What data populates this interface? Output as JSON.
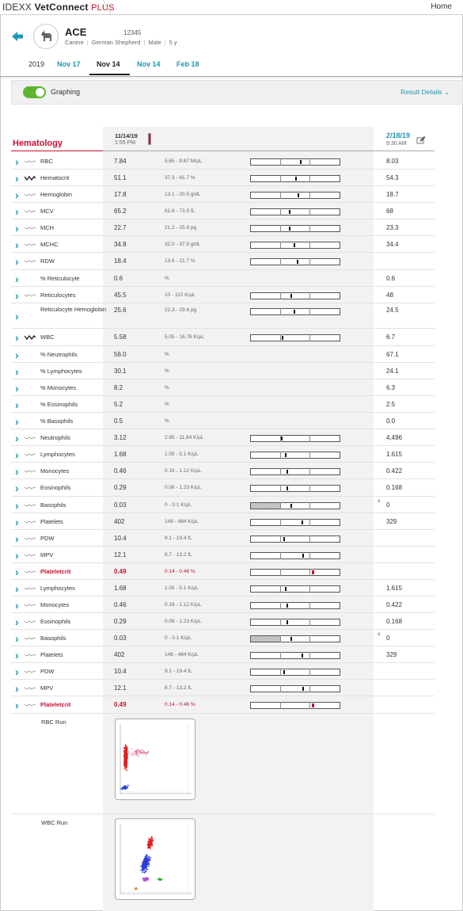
{
  "app": {
    "logo_idexx": "IDEXX",
    "logo_vc": "VetConnect",
    "logo_plus": "PLUS",
    "home_label": "Home"
  },
  "patient": {
    "name": "ACE",
    "id": "12345",
    "species": "Canine",
    "breed": "German Shepherd",
    "sex": "Male",
    "age": "5 y"
  },
  "tabs": [
    {
      "label": "2019",
      "kind": "year"
    },
    {
      "label": "Nov 17",
      "kind": "date"
    },
    {
      "label": "Nov 14",
      "kind": "active"
    },
    {
      "label": "Nov 14",
      "kind": "date"
    },
    {
      "label": "Feb 18",
      "kind": "date"
    }
  ],
  "graphing": {
    "label": "Graphing",
    "enabled": true,
    "result_details_label": "Result Details"
  },
  "section": {
    "title": "Hematology"
  },
  "columns": {
    "current": {
      "date": "11/14/19",
      "time": "1:55 PM"
    },
    "compare": {
      "date": "2/18/19",
      "time": "9:30 AM"
    }
  },
  "colors": {
    "accent": "#1a9ab5",
    "abnormal": "#c8102e",
    "toggle_on": "#5cb531"
  },
  "rows": [
    {
      "name": "RBC",
      "spark": "flat",
      "value": "7.84",
      "range": "5.65 - 8.87 M/µL",
      "bar": 0.55,
      "compare": "8.03"
    },
    {
      "name": "Hematocrit",
      "spark": "wave",
      "value": "51.1",
      "range": "37.3 - 61.7 %",
      "bar": 0.5,
      "compare": "54.3"
    },
    {
      "name": "Hemoglobin",
      "spark": "flat",
      "value": "17.8",
      "range": "13.1 - 20.5 g/dL",
      "bar": 0.53,
      "compare": "18.7"
    },
    {
      "name": "MCV",
      "spark": "flat",
      "value": "65.2",
      "range": "61.6 - 73.5 fL",
      "bar": 0.43,
      "compare": "68"
    },
    {
      "name": "MCH",
      "spark": "flat",
      "value": "22.7",
      "range": "21.2 - 25.9 pg",
      "bar": 0.43,
      "compare": "23.3"
    },
    {
      "name": "MCHC",
      "spark": "flat",
      "value": "34.8",
      "range": "32.0 - 37.9 g/dL",
      "bar": 0.48,
      "compare": "34.4"
    },
    {
      "name": "RDW",
      "spark": "flat",
      "value": "18.4",
      "range": "13.6 - 21.7 %",
      "bar": 0.52,
      "compare": ""
    },
    {
      "name": "% Reticulocyte",
      "spark": "none",
      "value": "0.6",
      "range": "%",
      "compare": "0.6"
    },
    {
      "name": "Reticulocytes",
      "spark": "flat",
      "value": "45.5",
      "range": "10 - 110 K/µL",
      "bar": 0.45,
      "compare": "48"
    },
    {
      "name": "Reticulocyte Hemoglobin",
      "spark": "none",
      "value": "25.6",
      "range": "22.3 - 29.6 pg",
      "bar": 0.48,
      "compare": "24.5"
    },
    {
      "name": "WBC",
      "spark": "wave",
      "value": "5.58",
      "range": "5.05 - 16.76 K/µL",
      "bar": 0.35,
      "compare": "6.7"
    },
    {
      "name": "% Neutrophils",
      "spark": "none",
      "value": "56.0",
      "range": "%",
      "compare": "67.1"
    },
    {
      "name": "% Lymphocytes",
      "spark": "none",
      "value": "30.1",
      "range": "%",
      "compare": "24.1"
    },
    {
      "name": "% Monocytes",
      "spark": "none",
      "value": "8.2",
      "range": "%",
      "compare": "6.3"
    },
    {
      "name": "% Eosinophils",
      "spark": "none",
      "value": "5.2",
      "range": "%",
      "compare": "2.5"
    },
    {
      "name": "% Basophils",
      "spark": "none",
      "value": "0.5",
      "range": "%",
      "compare": "0.0"
    },
    {
      "name": "Neutrophils",
      "spark": "flat",
      "value": "3.12",
      "range": "2.95 - 11.64 K/µL",
      "bar": 0.34,
      "compare": "4,496"
    },
    {
      "name": "Lymphocytes",
      "spark": "flat",
      "value": "1.68",
      "range": "1.05 - 5.1 K/µL",
      "bar": 0.38,
      "compare": "1.615"
    },
    {
      "name": "Monocytes",
      "spark": "flat",
      "value": "0.46",
      "range": "0.16 - 1.12 K/µL",
      "bar": 0.4,
      "compare": "0.422"
    },
    {
      "name": "Eosinophils",
      "spark": "flat",
      "value": "0.29",
      "range": "0.06 - 1.23 K/µL",
      "bar": 0.4,
      "compare": "0.168"
    },
    {
      "name": "Basophils",
      "spark": "flat",
      "value": "0.03",
      "range": "0 - 0.1 K/µL",
      "bar": 0.45,
      "hatch": true,
      "flag": "a",
      "compare": "0"
    },
    {
      "name": "Platelets",
      "spark": "flat",
      "value": "402",
      "range": "148 - 484 K/µL",
      "bar": 0.57,
      "compare": "329"
    },
    {
      "name": "PDW",
      "spark": "flat",
      "value": "10.4",
      "range": "9.1 - 19.4 fL",
      "bar": 0.37,
      "compare": ""
    },
    {
      "name": "MPV",
      "spark": "flat",
      "value": "12.1",
      "range": "8.7 - 13.2 fL",
      "bar": 0.58,
      "compare": ""
    },
    {
      "name": "Plateletcrit",
      "spark": "flat",
      "value": "0.49",
      "range": "0.14 - 0.46 %",
      "bar": 0.69,
      "abnormal": true,
      "compare": ""
    },
    {
      "name": "Lymphocytes",
      "spark": "flat",
      "value": "1.68",
      "range": "1.05 - 5.1 K/µL",
      "bar": 0.38,
      "compare": "1.615"
    },
    {
      "name": "Monocytes",
      "spark": "flat",
      "value": "0.46",
      "range": "0.16 - 1.12 K/µL",
      "bar": 0.4,
      "compare": "0.422"
    },
    {
      "name": "Eosinophils",
      "spark": "flat",
      "value": "0.29",
      "range": "0.06 - 1.23 K/µL",
      "bar": 0.4,
      "compare": "0.168"
    },
    {
      "name": "Basophils",
      "spark": "flat",
      "value": "0.03",
      "range": "0 - 0.1 K/µL",
      "bar": 0.45,
      "hatch": true,
      "flag": "a",
      "compare": "0"
    },
    {
      "name": "Platelets",
      "spark": "flat",
      "value": "402",
      "range": "148 - 484 K/µL",
      "bar": 0.57,
      "compare": "329"
    },
    {
      "name": "PDW",
      "spark": "flat",
      "value": "10.4",
      "range": "9.1 - 19.4 fL",
      "bar": 0.37,
      "compare": ""
    },
    {
      "name": "MPV",
      "spark": "flat",
      "value": "12.1",
      "range": "8.7 - 13.2 fL",
      "bar": 0.58,
      "compare": ""
    },
    {
      "name": "Plateletcrit",
      "spark": "flat",
      "value": "0.49",
      "range": "0.14 - 0.46 %",
      "bar": 0.69,
      "abnormal": true,
      "compare": ""
    }
  ],
  "runs": [
    {
      "label": "RBC Run",
      "kind": "rbc"
    },
    {
      "label": "WBC Run",
      "kind": "wbc"
    }
  ],
  "icons": {
    "back": "back-arrow-icon",
    "avatar": "dog-icon",
    "expand": "chevron-right-icon",
    "trend": "sparkline-icon",
    "edit": "pencil-icon",
    "details": "chevron-down-icon"
  }
}
